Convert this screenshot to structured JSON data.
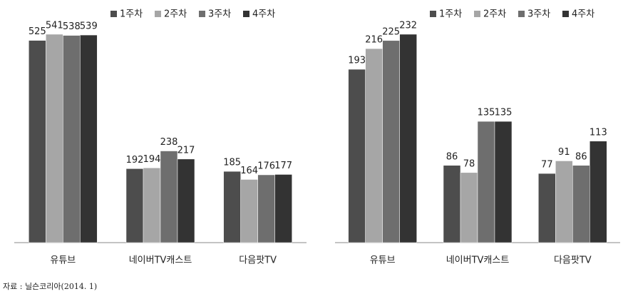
{
  "chart_data": [
    {
      "type": "bar",
      "categories": [
        "유튜브",
        "네이버TV캐스트",
        "다음팟TV"
      ],
      "series": [
        {
          "name": "1주차",
          "color": "#4d4d4d",
          "values": [
            525,
            192,
            185
          ]
        },
        {
          "name": "2주차",
          "color": "#a6a6a6",
          "values": [
            541,
            194,
            164
          ]
        },
        {
          "name": "3주차",
          "color": "#6e6e6e",
          "values": [
            538,
            238,
            176
          ]
        },
        {
          "name": "4주차",
          "color": "#333333",
          "values": [
            539,
            217,
            177
          ]
        }
      ]
    },
    {
      "type": "bar",
      "categories": [
        "유튜브",
        "네이버TV캐스트",
        "다음팟TV"
      ],
      "series": [
        {
          "name": "1주차",
          "color": "#4d4d4d",
          "values": [
            193,
            86,
            77
          ]
        },
        {
          "name": "2주차",
          "color": "#a6a6a6",
          "values": [
            216,
            78,
            91
          ]
        },
        {
          "name": "3주차",
          "color": "#6e6e6e",
          "values": [
            225,
            135,
            86
          ]
        },
        {
          "name": "4주차",
          "color": "#333333",
          "values": [
            232,
            135,
            113
          ]
        }
      ]
    }
  ],
  "source": "자료 : 닐슨코리아(2014. 1)"
}
